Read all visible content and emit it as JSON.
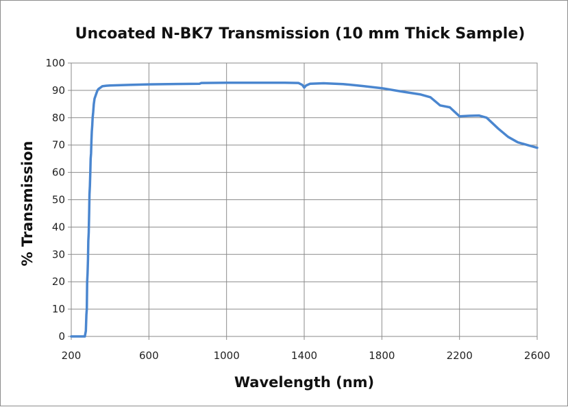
{
  "chart_data": {
    "type": "line",
    "title": "Uncoated N-BK7 Transmission (10 mm Thick Sample)",
    "xlabel": "Wavelength (nm)",
    "ylabel": "% Transmission",
    "xlim": [
      200,
      2600
    ],
    "ylim": [
      0,
      100
    ],
    "xticks": [
      200,
      600,
      1000,
      1400,
      1800,
      2200,
      2600
    ],
    "yticks": [
      0,
      10,
      20,
      30,
      40,
      50,
      60,
      70,
      80,
      90,
      100
    ],
    "grid": true,
    "legend": "none",
    "series": [
      {
        "color": "#4a86cf",
        "x": [
          200,
          270,
          275,
          278,
          280,
          282,
          284,
          286,
          288,
          290,
          292,
          294,
          296,
          298,
          300,
          302,
          304,
          306,
          308,
          310,
          313,
          316,
          320,
          325,
          330,
          335,
          340,
          350,
          360,
          380,
          400,
          500,
          600,
          700,
          860,
          870,
          1000,
          1200,
          1300,
          1370,
          1390,
          1400,
          1410,
          1430,
          1500,
          1600,
          1700,
          1800,
          1900,
          2000,
          2050,
          2100,
          2150,
          2200,
          2250,
          2300,
          2340,
          2400,
          2450,
          2500,
          2550,
          2600
        ],
        "y": [
          0,
          0,
          2,
          8,
          10,
          20,
          23,
          28,
          35,
          38,
          45,
          52,
          55,
          60,
          65,
          67,
          72,
          75,
          77,
          80,
          82,
          85,
          87,
          88,
          89,
          90,
          90.5,
          91,
          91.5,
          91.7,
          91.8,
          92,
          92.2,
          92.3,
          92.4,
          92.7,
          92.8,
          92.8,
          92.8,
          92.7,
          92,
          91,
          91.8,
          92.4,
          92.6,
          92.3,
          91.6,
          90.8,
          89.6,
          88.5,
          87.5,
          84.5,
          83.8,
          80.5,
          80.7,
          80.8,
          80,
          76,
          73,
          71,
          70,
          69
        ]
      }
    ]
  }
}
